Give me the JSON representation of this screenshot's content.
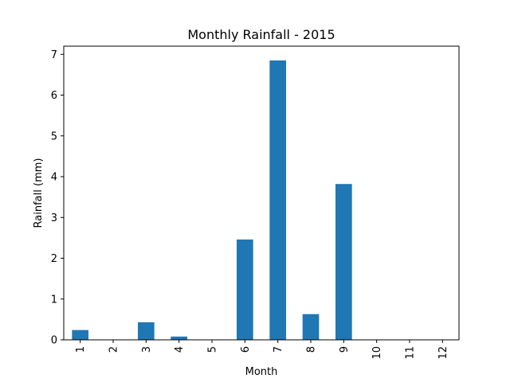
{
  "chart_data": {
    "type": "bar",
    "title": "Monthly Rainfall - 2015",
    "xlabel": "Month",
    "ylabel": "Rainfall (mm)",
    "categories": [
      "1",
      "2",
      "3",
      "4",
      "5",
      "6",
      "7",
      "8",
      "9",
      "10",
      "11",
      "12"
    ],
    "values": [
      0.24,
      0.0,
      0.43,
      0.08,
      0.0,
      2.46,
      6.85,
      0.63,
      3.82,
      0.0,
      0.0,
      0.0
    ],
    "ylim": [
      0,
      7.2
    ],
    "yticks": [
      0,
      1,
      2,
      3,
      4,
      5,
      6,
      7
    ],
    "ytick_labels": [
      "0",
      "1",
      "2",
      "3",
      "4",
      "5",
      "6",
      "7"
    ],
    "bar_color": "#1f77b4",
    "grid": false,
    "legend": false
  }
}
